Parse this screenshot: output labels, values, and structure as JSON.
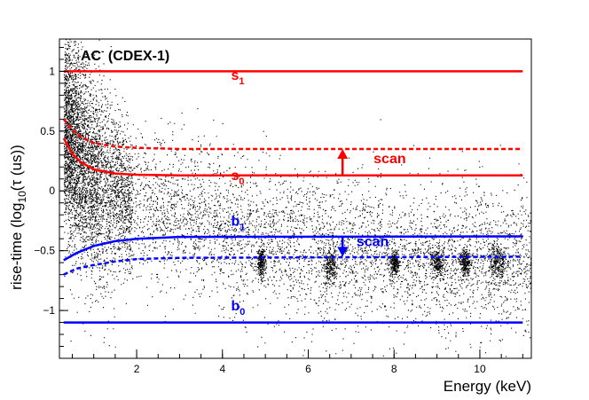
{
  "chart_data": {
    "type": "scatter",
    "title": "AC⁻ (CDEX-1)",
    "title_parts": {
      "main": "AC",
      "superscript": "-",
      "rest": " (CDEX-1)"
    },
    "xlabel": "Energy (keV)",
    "ylabel_parts": {
      "pre": "rise-time (log",
      "sub": "10",
      "post": "(τ (us))"
    },
    "xlim": [
      0.2,
      11.2
    ],
    "ylim": [
      -1.4,
      1.27
    ],
    "x_ticks": [
      2,
      4,
      6,
      8,
      10
    ],
    "x_tick_labels": [
      "2",
      "4",
      "6",
      "8",
      "10"
    ],
    "y_ticks": [
      -1,
      -0.5,
      0,
      0.5,
      1
    ],
    "y_tick_labels": [
      "−1",
      "−0.5",
      "0",
      "0.5",
      "1"
    ],
    "grid": false,
    "series": [
      {
        "label_main": "s",
        "label_sub": "1",
        "color": "#ff0000",
        "style": "solid",
        "points": [
          [
            0.3,
            1.0
          ],
          [
            11.0,
            1.0
          ]
        ]
      },
      {
        "label_main": "s",
        "label_sub": "0",
        "color": "#ff0000",
        "style": "solid",
        "points": [
          [
            0.3,
            0.44
          ],
          [
            0.5,
            0.31
          ],
          [
            0.7,
            0.24
          ],
          [
            1.0,
            0.18
          ],
          [
            1.5,
            0.145
          ],
          [
            2.0,
            0.135
          ],
          [
            3.0,
            0.13
          ],
          [
            11.0,
            0.13
          ]
        ]
      },
      {
        "label_main": "",
        "label_sub": "",
        "color": "#ff0000",
        "style": "dashed",
        "points": [
          [
            0.3,
            0.6
          ],
          [
            0.5,
            0.51
          ],
          [
            0.7,
            0.45
          ],
          [
            1.0,
            0.4
          ],
          [
            1.5,
            0.37
          ],
          [
            2.0,
            0.36
          ],
          [
            3.0,
            0.35
          ],
          [
            11.0,
            0.35
          ]
        ]
      },
      {
        "label_main": "b",
        "label_sub": "1",
        "color": "#0000ff",
        "style": "solid",
        "points": [
          [
            0.3,
            -0.58
          ],
          [
            0.6,
            -0.52
          ],
          [
            1.0,
            -0.46
          ],
          [
            1.5,
            -0.42
          ],
          [
            2.0,
            -0.4
          ],
          [
            3.0,
            -0.385
          ],
          [
            11.0,
            -0.38
          ]
        ]
      },
      {
        "label_main": "",
        "label_sub": "",
        "color": "#0000ff",
        "style": "dashed",
        "points": [
          [
            0.3,
            -0.7
          ],
          [
            0.6,
            -0.65
          ],
          [
            1.0,
            -0.62
          ],
          [
            1.5,
            -0.59
          ],
          [
            2.0,
            -0.57
          ],
          [
            3.0,
            -0.56
          ],
          [
            11.0,
            -0.55
          ]
        ]
      },
      {
        "label_main": "b",
        "label_sub": "0",
        "color": "#0000ff",
        "style": "solid",
        "points": [
          [
            0.3,
            -1.1
          ],
          [
            11.0,
            -1.1
          ]
        ]
      }
    ],
    "series_label_positions": [
      [
        4.2,
        0.93
      ],
      [
        4.2,
        0.09
      ],
      null,
      [
        4.2,
        -0.29
      ],
      null,
      [
        4.2,
        -1.0
      ]
    ],
    "annotations": [
      {
        "text": "scan",
        "color": "#ff0000",
        "x": 7.9,
        "y": 0.23,
        "arrow_x": 6.8,
        "arrow_from": 0.13,
        "arrow_to": 0.35
      },
      {
        "text": "scan",
        "color": "#0000ff",
        "x": 7.5,
        "y": -0.46,
        "arrow_x": 6.8,
        "arrow_from": -0.38,
        "arrow_to": -0.55
      }
    ],
    "scatter_description": {
      "color": "#000000",
      "approx_points": 9000,
      "bulk_center_y_by_energy": [
        [
          0.3,
          0.55
        ],
        [
          0.6,
          0.35
        ],
        [
          1.0,
          0.1
        ],
        [
          2.0,
          -0.1
        ],
        [
          4.0,
          -0.3
        ],
        [
          6.0,
          -0.45
        ],
        [
          8.0,
          -0.55
        ],
        [
          11.0,
          -0.6
        ]
      ],
      "clusters": [
        {
          "x": 4.9,
          "y": -0.6,
          "x_spread": 0.05,
          "y_spread": 0.06
        },
        {
          "x": 6.5,
          "y": -0.62,
          "x_spread": 0.07,
          "y_spread": 0.08
        },
        {
          "x": 8.0,
          "y": -0.6,
          "x_spread": 0.05,
          "y_spread": 0.05
        },
        {
          "x": 9.0,
          "y": -0.6,
          "x_spread": 0.09,
          "y_spread": 0.07
        },
        {
          "x": 9.65,
          "y": -0.6,
          "x_spread": 0.07,
          "y_spread": 0.06
        },
        {
          "x": 10.4,
          "y": -0.6,
          "x_spread": 0.11,
          "y_spread": 0.07
        }
      ]
    }
  }
}
